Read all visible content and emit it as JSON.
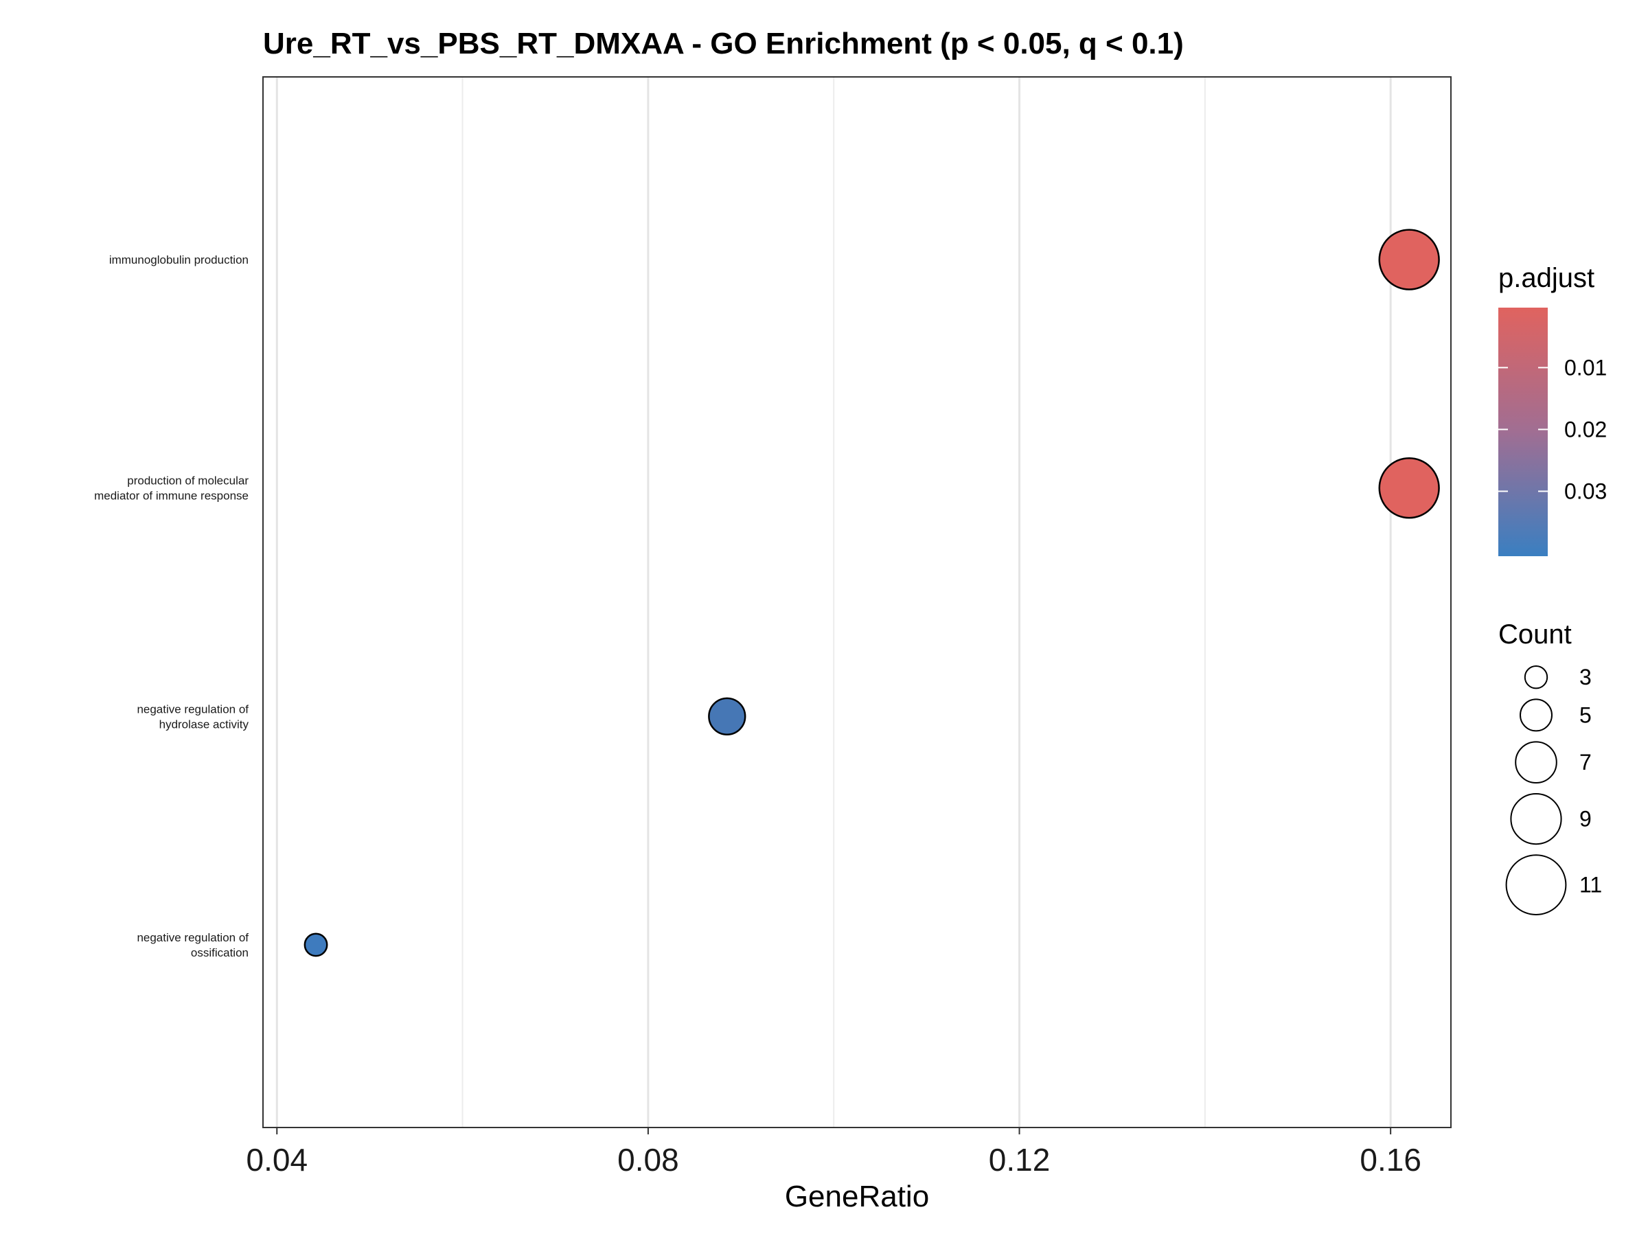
{
  "chart_data": {
    "type": "scatter",
    "title": "Ure_RT_vs_PBS_RT_DMXAA - GO Enrichment (p < 0.05, q < 0.1)",
    "xlabel": "GeneRatio",
    "ylabel": "",
    "xlim": [
      0.0385,
      0.1665
    ],
    "x_ticks": [
      0.04,
      0.08,
      0.12,
      0.16
    ],
    "x_tick_labels": [
      "0.04",
      "0.08",
      "0.12",
      "0.16"
    ],
    "x_minor_gridlines": [
      0.06,
      0.1,
      0.14
    ],
    "grid": true,
    "terms": [
      {
        "label_lines": [
          "immunoglobulin production"
        ],
        "gene_ratio": 0.162,
        "count": 11,
        "p_adjust": 0.0015,
        "color": "#E0635F"
      },
      {
        "label_lines": [
          "production of molecular",
          "mediator of immune response"
        ],
        "gene_ratio": 0.162,
        "count": 11,
        "p_adjust": 0.0015,
        "color": "#E0635F"
      },
      {
        "label_lines": [
          "negative regulation of",
          "hydrolase activity"
        ],
        "gene_ratio": 0.0885,
        "count": 6,
        "p_adjust": 0.038,
        "color": "#4677B5"
      },
      {
        "label_lines": [
          "negative regulation of",
          "ossification"
        ],
        "gene_ratio": 0.0442,
        "count": 3,
        "p_adjust": 0.04,
        "color": "#3E7BBE"
      }
    ],
    "legend_color": {
      "title": "p.adjust",
      "ticks": [
        0.01,
        0.02,
        0.03
      ],
      "tick_labels": [
        "0.01",
        "0.02",
        "0.03"
      ],
      "range": [
        0.0003,
        0.0405
      ],
      "low_color": "#E0635F",
      "high_color": "#3A7FC1",
      "placement": "right"
    },
    "legend_size": {
      "title": "Count",
      "values": [
        3,
        5,
        7,
        9,
        11
      ],
      "labels": [
        "3",
        "5",
        "7",
        "9",
        "11"
      ],
      "placement": "right"
    }
  }
}
